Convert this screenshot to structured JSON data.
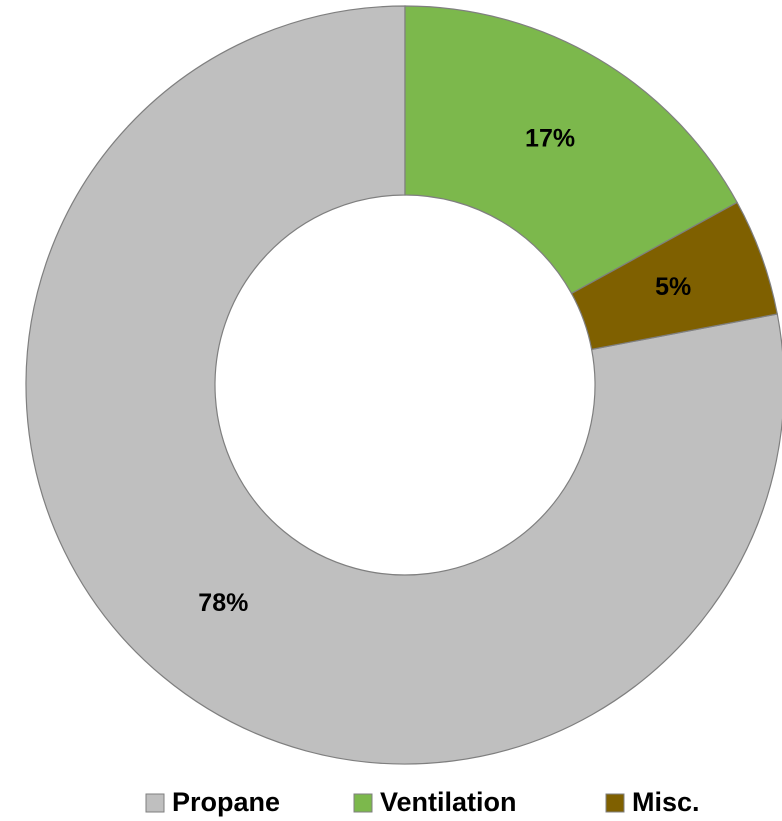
{
  "chart_data": {
    "type": "donut",
    "categories": [
      "Propane",
      "Ventilation",
      "Misc."
    ],
    "values": [
      78,
      17,
      5
    ],
    "value_labels": [
      "78%",
      "17%",
      "5%"
    ],
    "colors": [
      "#bfbfbf",
      "#7cb84c",
      "#7f6000"
    ],
    "legend": "bottom"
  }
}
